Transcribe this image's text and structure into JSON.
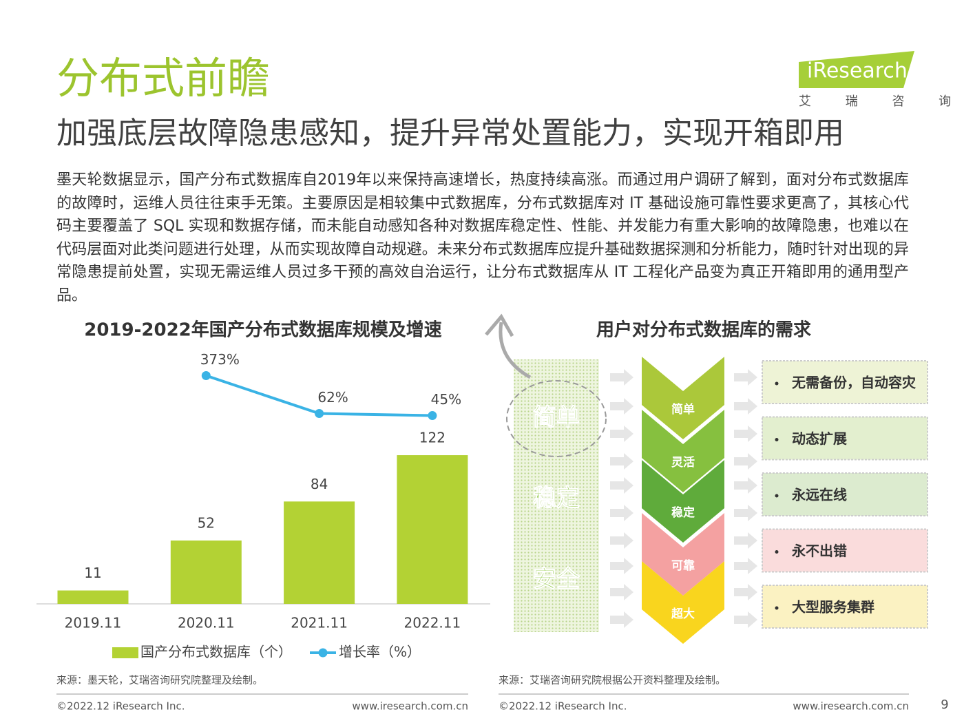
{
  "header": {
    "title": "分布式前瞻",
    "subtitle": "加强底层故障隐患感知，提升异常处置能力，实现开箱即用",
    "logo": "iResearch",
    "logo_cn": "艾 瑞 咨 询"
  },
  "body": "墨天轮数据显示，国产分布式数据库自2019年以来保持高速增长，热度持续高涨。而通过用户调研了解到，面对分布式数据库的故障时，运维人员往往束手无策。主要原因是相较集中式数据库，分布式数据库对 IT 基础设施可靠性要求更高了，其核心代码主要覆盖了 SQL 实现和数据存储，而未能自动感知各种对数据库稳定性、性能、并发能力有重大影响的故障隐患，也难以在代码层面对此类问题进行处理，从而实现故障自动规避。未来分布式数据库应提升基础数据探测和分析能力，随时针对出现的异常隐患提前处置，实现无需运维人员过多干预的高效自治运行，让分布式数据库从 IT 工程化产品变为真正开箱即用的通用型产品。",
  "chart_data": {
    "type": "bar",
    "title": "2019-2022年国产分布式数据库规模及增速",
    "categories": [
      "2019.11",
      "2020.11",
      "2021.11",
      "2022.11"
    ],
    "series": [
      {
        "name": "国产分布式数据库（个）",
        "color": "#b3d234",
        "values": [
          11,
          52,
          84,
          122
        ]
      },
      {
        "name": "增长率（%）",
        "color": "#3ab3e5",
        "type": "line",
        "axis": "y2",
        "values": [
          null,
          373,
          62,
          45
        ],
        "value_labels": [
          null,
          "373%",
          "62%",
          "45%"
        ]
      }
    ],
    "ylim": [
      0,
      200
    ],
    "y2lim": [
      -1500,
      500
    ]
  },
  "diagram": {
    "title": "用户对分布式数据库的需求",
    "pillars": [
      "简单",
      "稳定",
      "安全"
    ],
    "chevrons": [
      "简单",
      "灵活",
      "稳定",
      "可靠",
      "超大"
    ],
    "needs": [
      "无需备份，自动容灾",
      "动态扩展",
      "永远在线",
      "永不出错",
      "大型服务集群"
    ]
  },
  "sources": [
    "来源：墨天轮，艾瑞咨询研究院整理及绘制。",
    "来源：艾瑞咨询研究院根据公开资料整理及绘制。"
  ],
  "footer": {
    "copyright": "©2022.12 iResearch Inc.",
    "url": "www.iresearch.com.cn",
    "page": "9"
  }
}
